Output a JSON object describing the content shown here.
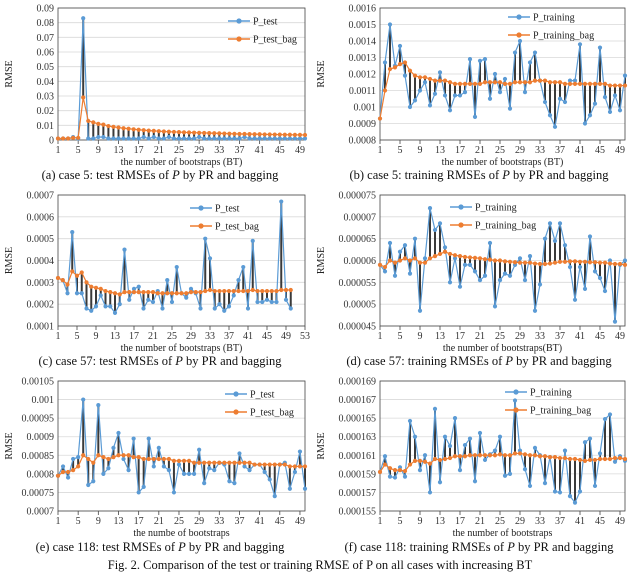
{
  "figure_caption": "Fig. 2. Comparison of the test or training RMSE of P on all cases with increasing BT",
  "chart_data": [
    {
      "type": "line",
      "caption_prefix": "(a) case 5: test RMSEs of ",
      "caption_var": "P",
      "caption_suffix": " by PR and bagging",
      "xlabel": "the number of bootstraps (BT)",
      "ylabel": "RMSE",
      "xlim": [
        1,
        50
      ],
      "xticks": [
        1,
        5,
        9,
        13,
        17,
        21,
        25,
        29,
        33,
        37,
        41,
        45,
        49
      ],
      "ylim": [
        0,
        0.09
      ],
      "yticks": [
        0,
        0.01,
        0.02,
        0.03,
        0.04,
        0.05,
        0.06,
        0.07,
        0.08,
        0.09
      ],
      "grid": true,
      "legend": "top-right",
      "series": [
        {
          "name": "P_test",
          "color": "#5b9bd5",
          "values": [
            0.001,
            0.001,
            0.001,
            0.002,
            0.001,
            0.083,
            0.001,
            0.001,
            0.002,
            0.002,
            0.001,
            0.001,
            0.001,
            0.001,
            0.001,
            0.001,
            0.001,
            0.002,
            0.001,
            0.002,
            0.001,
            0.001,
            0.002,
            0.001,
            0.001,
            0.001,
            0.001,
            0.001,
            0.002,
            0.001,
            0.001,
            0.001,
            0.001,
            0.001,
            0.001,
            0.001,
            0.001,
            0.002,
            0.001,
            0.001,
            0.001,
            0.001,
            0.001,
            0.001,
            0.001,
            0.001,
            0.001,
            0.001,
            0.001,
            0.001
          ]
        },
        {
          "name": "P_test_bag",
          "color": "#ed7d31",
          "values": [
            0.001,
            0.001,
            0.001,
            0.0015,
            0.0015,
            0.029,
            0.013,
            0.012,
            0.011,
            0.0105,
            0.0095,
            0.009,
            0.0085,
            0.008,
            0.0077,
            0.0073,
            0.007,
            0.0067,
            0.0064,
            0.0062,
            0.006,
            0.0058,
            0.0056,
            0.0055,
            0.0054,
            0.0052,
            0.0051,
            0.005,
            0.0049,
            0.0048,
            0.0047,
            0.0046,
            0.0045,
            0.0044,
            0.0043,
            0.0042,
            0.0041,
            0.0041,
            0.004,
            0.0039,
            0.0039,
            0.0038,
            0.0038,
            0.0037,
            0.0037,
            0.0036,
            0.0036,
            0.0035,
            0.0035,
            0.0034
          ]
        }
      ]
    },
    {
      "type": "line",
      "caption_prefix": "(b) case 5: training RMSEs of ",
      "caption_var": "P",
      "caption_suffix": " by PR and bagging",
      "xlabel": "the number of bootstraps (BT)",
      "ylabel": "RMSE",
      "xlim": [
        1,
        50
      ],
      "xticks": [
        1,
        5,
        9,
        13,
        17,
        21,
        25,
        29,
        33,
        37,
        41,
        45,
        49
      ],
      "ylim": [
        0.0008,
        0.0016
      ],
      "yticks": [
        0.0008,
        0.0009,
        0.001,
        0.0011,
        0.0012,
        0.0013,
        0.0014,
        0.0015,
        0.0016
      ],
      "grid": true,
      "legend": "top-right",
      "series": [
        {
          "name": "P_training",
          "color": "#5b9bd5",
          "values": [
            0.00093,
            0.00127,
            0.0015,
            0.00125,
            0.00137,
            0.00119,
            0.001,
            0.00104,
            0.0011,
            0.00115,
            0.00101,
            0.00108,
            0.00121,
            0.00107,
            0.00098,
            0.00107,
            0.00107,
            0.00109,
            0.00129,
            0.00094,
            0.00128,
            0.00129,
            0.00105,
            0.0012,
            0.00109,
            0.00117,
            0.00099,
            0.00133,
            0.0014,
            0.00109,
            0.00127,
            0.00133,
            0.00116,
            0.00103,
            0.00095,
            0.00088,
            0.00105,
            0.00103,
            0.00116,
            0.00116,
            0.00138,
            0.0009,
            0.00095,
            0.00102,
            0.00136,
            0.00106,
            0.00097,
            0.00107,
            0.00098,
            0.00119
          ]
        },
        {
          "name": "P_training_bag",
          "color": "#ed7d31",
          "values": [
            0.00093,
            0.0011,
            0.00123,
            0.00124,
            0.00126,
            0.00127,
            0.00122,
            0.00119,
            0.00118,
            0.00118,
            0.00117,
            0.00116,
            0.00116,
            0.00116,
            0.00115,
            0.00114,
            0.00114,
            0.00114,
            0.00114,
            0.00114,
            0.00114,
            0.00115,
            0.00115,
            0.00115,
            0.00115,
            0.00114,
            0.00114,
            0.00115,
            0.00115,
            0.00115,
            0.00115,
            0.00116,
            0.00116,
            0.00116,
            0.00115,
            0.00115,
            0.00115,
            0.00114,
            0.00114,
            0.00114,
            0.00114,
            0.00114,
            0.00114,
            0.00114,
            0.00114,
            0.00114,
            0.00113,
            0.00113,
            0.00113,
            0.00113
          ]
        }
      ]
    },
    {
      "type": "line",
      "caption_prefix": "(c) case 57: test RMSEs of ",
      "caption_var": "P",
      "caption_suffix": " by PR and bagging",
      "xlabel": "the number of bootstraps (BT)",
      "ylabel": "RMSE",
      "xlim": [
        1,
        53
      ],
      "xticks": [
        1,
        5,
        9,
        13,
        17,
        21,
        25,
        29,
        33,
        37,
        41,
        45,
        49,
        53
      ],
      "ylim": [
        0.0001,
        0.0007
      ],
      "yticks": [
        0.0001,
        0.0002,
        0.0003,
        0.0004,
        0.0005,
        0.0006,
        0.0007
      ],
      "grid": true,
      "legend": "top-right",
      "series": [
        {
          "name": "P_test",
          "color": "#5b9bd5",
          "values": [
            0.00032,
            0.00031,
            0.00025,
            0.00053,
            0.00025,
            0.00025,
            0.00018,
            0.00017,
            0.00019,
            0.00024,
            0.00019,
            0.00019,
            0.00016,
            0.0002,
            0.00045,
            0.00022,
            0.00027,
            0.00028,
            0.00018,
            0.00022,
            0.00021,
            0.00026,
            0.00018,
            0.00031,
            0.00021,
            0.00037,
            0.00025,
            0.00023,
            0.00027,
            0.00025,
            0.00018,
            0.0005,
            0.00041,
            0.00018,
            0.0002,
            0.00017,
            0.00019,
            0.00024,
            0.00031,
            0.00037,
            0.00018,
            0.00049,
            0.00021,
            0.00021,
            0.00022,
            0.00021,
            0.00021,
            0.00067,
            0.00022,
            0.00018
          ]
        },
        {
          "name": "P_test_bag",
          "color": "#ed7d31",
          "values": [
            0.00032,
            0.00031,
            0.00029,
            0.00035,
            0.00033,
            0.000345,
            0.0003,
            0.00028,
            0.000275,
            0.00027,
            0.00026,
            0.000255,
            0.00025,
            0.000245,
            0.000255,
            0.000255,
            0.000255,
            0.000255,
            0.000255,
            0.000255,
            0.000255,
            0.00025,
            0.00025,
            0.00025,
            0.00025,
            0.00025,
            0.00025,
            0.00025,
            0.000255,
            0.000255,
            0.000255,
            0.00026,
            0.000265,
            0.00026,
            0.00026,
            0.00026,
            0.00026,
            0.00026,
            0.00026,
            0.00026,
            0.00026,
            0.000265,
            0.00026,
            0.00026,
            0.00026,
            0.00026,
            0.00026,
            0.000265,
            0.000265,
            0.000265
          ]
        }
      ]
    },
    {
      "type": "line",
      "caption_prefix": "(d) case 57: training RMSEs of ",
      "caption_var": "P",
      "caption_suffix": " by PR and bagging",
      "xlabel": "the number of bootstraps(BT)",
      "ylabel": "RMSE",
      "xlim": [
        1,
        50
      ],
      "xticks": [
        1,
        5,
        9,
        13,
        17,
        21,
        25,
        29,
        33,
        37,
        41,
        45,
        49
      ],
      "ylim": [
        4.5e-05,
        7.5e-05
      ],
      "yticks": [
        4.5e-05,
        5e-05,
        5.5e-05,
        6e-05,
        6.5e-05,
        7e-05,
        7.5e-05
      ],
      "grid": true,
      "legend": "top-right",
      "series": [
        {
          "name": "P_training",
          "color": "#5b9bd5",
          "values": [
            5.9e-05,
            5.75e-05,
            6.4e-05,
            5.65e-05,
            6.2e-05,
            6.35e-05,
            5.7e-05,
            6.5e-05,
            4.85e-05,
            6.05e-05,
            7.2e-05,
            6.7e-05,
            6.85e-05,
            6.3e-05,
            5.5e-05,
            6.05e-05,
            5.4e-05,
            5.9e-05,
            5.9e-05,
            5.75e-05,
            5.55e-05,
            5.65e-05,
            6.4e-05,
            4.95e-05,
            5.55e-05,
            5.7e-05,
            5.65e-05,
            5.9e-05,
            6.05e-05,
            5.55e-05,
            6.1e-05,
            4.85e-05,
            5.45e-05,
            6.5e-05,
            6.85e-05,
            6.45e-05,
            6.85e-05,
            6.35e-05,
            5.85e-05,
            5.1e-05,
            5.85e-05,
            5.35e-05,
            6.55e-05,
            5.75e-05,
            5.6e-05,
            5.3e-05,
            6e-05,
            4.6e-05,
            5.9e-05,
            6e-05
          ]
        },
        {
          "name": "P_training_bag",
          "color": "#ed7d31",
          "values": [
            5.9e-05,
            5.85e-05,
            6e-05,
            5.95e-05,
            6e-05,
            6.05e-05,
            6e-05,
            6.05e-05,
            5.95e-05,
            5.95e-05,
            6.05e-05,
            6.1e-05,
            6.15e-05,
            6.2e-05,
            6.15e-05,
            6.12e-05,
            6.1e-05,
            6.08e-05,
            6.07e-05,
            6.06e-05,
            6.05e-05,
            6.03e-05,
            6.02e-05,
            6e-05,
            6e-05,
            5.98e-05,
            5.97e-05,
            5.96e-05,
            5.95e-05,
            5.95e-05,
            5.95e-05,
            5.93e-05,
            5.92e-05,
            5.92e-05,
            5.93e-05,
            5.95e-05,
            5.97e-05,
            5.97e-05,
            5.98e-05,
            5.98e-05,
            5.97e-05,
            5.97e-05,
            5.96e-05,
            5.96e-05,
            5.95e-05,
            5.95e-05,
            5.93e-05,
            5.92e-05,
            5.92e-05,
            5.9e-05
          ]
        }
      ]
    },
    {
      "type": "line",
      "caption_prefix": "(e) case 118: test RMSEs of ",
      "caption_var": "P",
      "caption_suffix": " by PR and bagging",
      "xlabel": "the numbe of bootstraps",
      "ylabel": "RMSE",
      "xlim": [
        1,
        50
      ],
      "xticks": [
        1,
        5,
        9,
        13,
        17,
        21,
        25,
        29,
        33,
        37,
        41,
        45,
        49
      ],
      "ylim": [
        0.0007,
        0.00105
      ],
      "yticks": [
        0.0007,
        0.00075,
        0.0008,
        0.00085,
        0.0009,
        0.00095,
        0.001,
        0.00105
      ],
      "grid": true,
      "legend": "top-right",
      "series": [
        {
          "name": "P_test",
          "color": "#5b9bd5",
          "values": [
            0.000795,
            0.00082,
            0.00079,
            0.00084,
            0.000845,
            0.001,
            0.00077,
            0.00078,
            0.000985,
            0.0008,
            0.000815,
            0.00087,
            0.00091,
            0.00084,
            0.00081,
            0.000895,
            0.00075,
            0.000765,
            0.000895,
            0.00082,
            0.00087,
            0.00082,
            0.00081,
            0.00075,
            0.000825,
            0.0008,
            0.0008,
            0.0008,
            0.000865,
            0.000775,
            0.000815,
            0.00081,
            0.00083,
            0.000825,
            0.00078,
            0.000775,
            0.000855,
            0.00082,
            0.00081,
            0.000825,
            0.000825,
            0.000805,
            0.000785,
            0.00074,
            0.000825,
            0.00083,
            0.00076,
            0.000805,
            0.00086,
            0.00076
          ]
        },
        {
          "name": "P_test_bag",
          "color": "#ed7d31",
          "values": [
            0.000795,
            0.000805,
            0.000805,
            0.00081,
            0.00082,
            0.00085,
            0.00084,
            0.00083,
            0.00085,
            0.000845,
            0.00084,
            0.000845,
            0.00085,
            0.00085,
            0.00085,
            0.000845,
            0.000845,
            0.00084,
            0.00084,
            0.00084,
            0.00084,
            0.00084,
            0.00084,
            0.000835,
            0.000835,
            0.000835,
            0.000835,
            0.00083,
            0.00083,
            0.00083,
            0.00083,
            0.00083,
            0.00083,
            0.00083,
            0.00083,
            0.00083,
            0.00083,
            0.00083,
            0.00083,
            0.000825,
            0.000825,
            0.000825,
            0.000825,
            0.000825,
            0.000825,
            0.000825,
            0.00082,
            0.00082,
            0.00082,
            0.00082
          ]
        }
      ]
    },
    {
      "type": "line",
      "caption_prefix": "(f) case 118: training RMSEs of ",
      "caption_var": "P",
      "caption_suffix": " by PR and bagging",
      "xlabel": "the number of bootstraps",
      "ylabel": "RMSE",
      "xlim": [
        1,
        50
      ],
      "xticks": [
        1,
        5,
        9,
        13,
        17,
        21,
        25,
        29,
        33,
        37,
        41,
        45,
        49
      ],
      "ylim": [
        0.000155,
        0.000169
      ],
      "yticks": [
        0.000155,
        0.000157,
        0.000159,
        0.000161,
        0.000163,
        0.000165,
        0.000167,
        0.000169
      ],
      "grid": true,
      "legend": "top-right",
      "series": [
        {
          "name": "P_training",
          "color": "#5b9bd5",
          "values": [
            0.0001592,
            0.0001609,
            0.0001587,
            0.0001586,
            0.0001597,
            0.0001587,
            0.0001647,
            0.000163,
            0.0001594,
            0.000161,
            0.000157,
            0.000166,
            0.0001581,
            0.000163,
            0.000162,
            0.000165,
            0.0001594,
            0.0001621,
            0.0001628,
            0.0001582,
            0.0001634,
            0.0001605,
            0.0001611,
            0.0001615,
            0.000163,
            0.0001588,
            0.000159,
            0.0001669,
            0.0001615,
            0.0001595,
            0.0001577,
            0.0001618,
            0.000161,
            0.000158,
            0.0001608,
            0.0001571,
            0.000157,
            0.0001615,
            0.0001566,
            0.0001559,
            0.0001571,
            0.0001624,
            0.0001628,
            0.0001577,
            0.0001612,
            0.0001649,
            0.0001654,
            0.0001603,
            0.0001609,
            0.0001604
          ]
        },
        {
          "name": "P_training_bag",
          "color": "#ed7d31",
          "values": [
            0.0001592,
            0.00016,
            0.0001596,
            0.0001594,
            0.0001594,
            0.0001593,
            0.00016,
            0.0001604,
            0.0001604,
            0.0001603,
            0.0001601,
            0.0001606,
            0.0001605,
            0.0001606,
            0.0001607,
            0.0001609,
            0.0001609,
            0.0001609,
            0.000161,
            0.000161,
            0.000161,
            0.000161,
            0.000161,
            0.000161,
            0.0001611,
            0.000161,
            0.000161,
            0.0001612,
            0.0001612,
            0.0001611,
            0.000161,
            0.000161,
            0.0001609,
            0.0001609,
            0.0001608,
            0.0001608,
            0.0001607,
            0.0001607,
            0.0001606,
            0.0001606,
            0.0001605,
            0.0001604,
            0.0001605,
            0.0001605,
            0.0001606,
            0.0001606,
            0.0001606,
            0.0001607,
            0.0001607,
            0.0001606
          ]
        }
      ]
    }
  ]
}
